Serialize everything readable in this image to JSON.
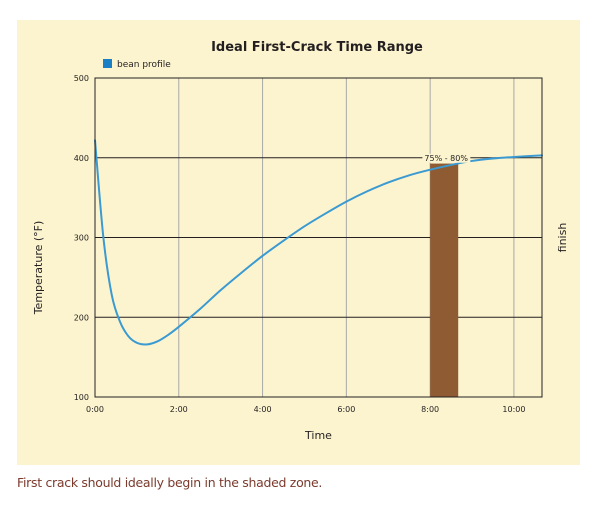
{
  "caption": "First crack should ideally begin in the shaded zone.",
  "chart_data": {
    "type": "line",
    "title": "Ideal First-Crack Time Range",
    "xlabel": "Time",
    "ylabel": "Temperature (°F)",
    "right_label": "finish",
    "x_ticks": [
      "0:00",
      "2:00",
      "4:00",
      "6:00",
      "8:00",
      "10:00"
    ],
    "y_ticks": [
      100,
      200,
      300,
      400,
      500
    ],
    "xlim_minutes": [
      0,
      10.67
    ],
    "ylim": [
      100,
      500
    ],
    "grid": true,
    "legend": {
      "position": "top-left",
      "entries": [
        {
          "label": "bean profile",
          "color": "#1a7fc4"
        }
      ]
    },
    "series": [
      {
        "name": "bean profile",
        "color": "#3a9ad1",
        "x_minutes": [
          0,
          0.2,
          0.4,
          0.6,
          0.8,
          1.0,
          1.25,
          1.5,
          1.75,
          2.0,
          2.5,
          3.0,
          3.5,
          4.0,
          4.5,
          5.0,
          5.5,
          6.0,
          6.5,
          7.0,
          7.5,
          8.0,
          8.5,
          9.0,
          9.5,
          10.0,
          10.67
        ],
        "y_values": [
          422,
          300,
          228,
          194,
          176,
          168,
          166,
          170,
          178,
          188,
          210,
          234,
          256,
          277,
          296,
          314,
          330,
          345,
          358,
          369,
          378,
          385,
          391,
          396,
          399,
          401,
          403
        ]
      }
    ],
    "shaded_region": {
      "label": "75% - 80%",
      "x_start_minutes": 8.0,
      "x_end_minutes": 8.67,
      "color": "#8f5b33"
    }
  }
}
